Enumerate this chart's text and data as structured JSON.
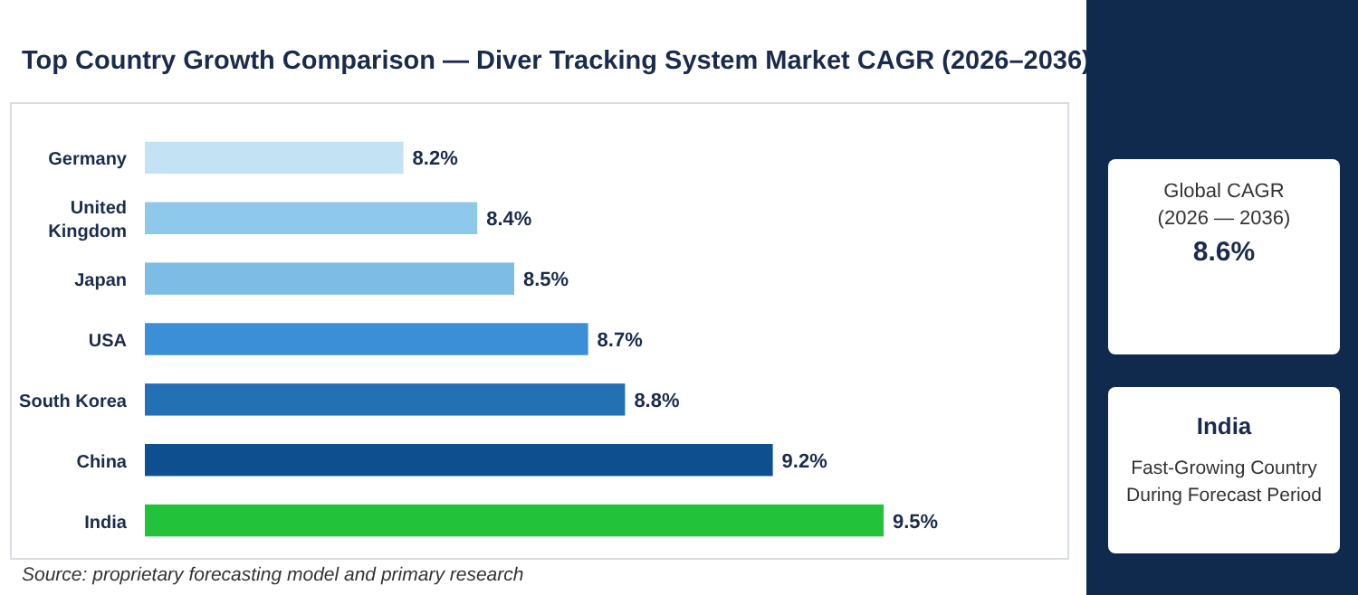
{
  "chart_data": {
    "type": "bar",
    "orientation": "horizontal",
    "title": "Top Country Growth Comparison — Diver Tracking System Market CAGR (2026–2036)",
    "categories": [
      "Germany",
      "United Kingdom",
      "Japan",
      "USA",
      "South Korea",
      "China",
      "India"
    ],
    "values": [
      8.2,
      8.4,
      8.5,
      8.7,
      8.8,
      9.2,
      9.5
    ],
    "value_labels": [
      "8.2%",
      "8.4%",
      "8.5%",
      "8.7%",
      "8.8%",
      "9.2%",
      "9.5%"
    ],
    "colors": [
      "#c3e2f4",
      "#8ec8ea",
      "#7cbce5",
      "#3a8fd6",
      "#2470b5",
      "#0d4f8f",
      "#22c33a"
    ],
    "xlim": [
      7.5,
      10
    ],
    "annotations": [
      "Source: proprietary forecasting model and primary research",
      "Global CAGR",
      "(2026 — 2036)",
      "8.6%",
      "India",
      "Fast-Growing Country",
      "During Forecast Period"
    ]
  }
}
